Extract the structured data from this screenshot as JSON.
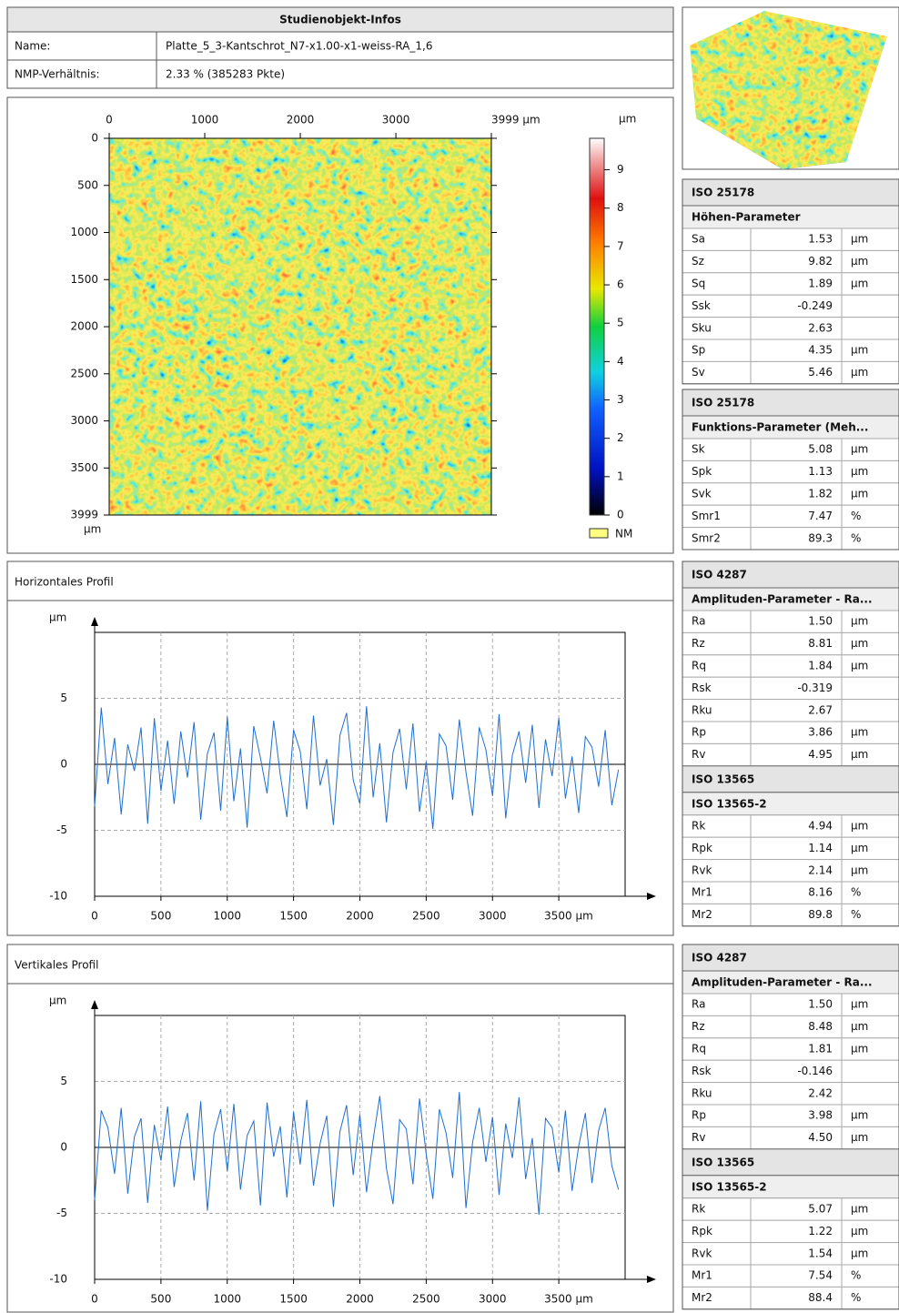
{
  "info": {
    "title": "Studienobjekt-Infos",
    "rows": [
      [
        "Name:",
        "Platte_5_3-Kantschrot_N7-x1.00-x1-weiss-RA_1,6"
      ],
      [
        "NMP-Verhältnis:",
        "2.33 % (385283 Pkte)"
      ]
    ]
  },
  "height_map": {
    "xlim": [
      0,
      3999
    ],
    "ylim": [
      0,
      3999
    ],
    "xticks": [
      0,
      1000,
      2000,
      3000,
      {
        "value": 3999,
        "label": "3999 µm"
      }
    ],
    "yticks": [
      0,
      500,
      1000,
      1500,
      2000,
      2500,
      3000,
      3500,
      3999
    ],
    "y_unit": "µm",
    "colorbar": {
      "unit": "µm",
      "lim": [
        0,
        9.82
      ],
      "ticks": [
        0,
        1,
        2,
        3,
        4,
        5,
        6,
        7,
        8,
        9
      ]
    },
    "nm_label": "NM"
  },
  "tables": [
    {
      "blocks": [
        {
          "title": "ISO 25178",
          "subtitle": "Höhen-Parameter",
          "rows": [
            [
              "Sa",
              "1.53",
              "µm"
            ],
            [
              "Sz",
              "9.82",
              "µm"
            ],
            [
              "Sq",
              "1.89",
              "µm"
            ],
            [
              "Ssk",
              "-0.249"
            ],
            [
              "Sku",
              "2.63"
            ],
            [
              "Sp",
              "4.35",
              "µm"
            ],
            [
              "Sv",
              "5.46",
              "µm"
            ]
          ]
        }
      ]
    },
    {
      "blocks": [
        {
          "title": "ISO 25178",
          "subtitle": "Funktions-Parameter  (Meh...",
          "rows": [
            [
              "Sk",
              "5.08",
              "µm"
            ],
            [
              "Spk",
              "1.13",
              "µm"
            ],
            [
              "Svk",
              "1.82",
              "µm"
            ],
            [
              "Smr1",
              "7.47",
              "%"
            ],
            [
              "Smr2",
              "89.3",
              "%"
            ]
          ]
        }
      ]
    },
    {
      "blocks": [
        {
          "title": "ISO 4287",
          "subtitle": "Amplituden-Parameter  - Ra...",
          "rows": [
            [
              "Ra",
              "1.50",
              "µm"
            ],
            [
              "Rz",
              "8.81",
              "µm"
            ],
            [
              "Rq",
              "1.84",
              "µm"
            ],
            [
              "Rsk",
              "-0.319"
            ],
            [
              "Rku",
              "2.67"
            ],
            [
              "Rp",
              "3.86",
              "µm"
            ],
            [
              "Rv",
              "4.95",
              "µm"
            ]
          ]
        },
        {
          "title": "ISO 13565",
          "subtitle": "ISO 13565-2",
          "rows": [
            [
              "Rk",
              "4.94",
              "µm"
            ],
            [
              "Rpk",
              "1.14",
              "µm"
            ],
            [
              "Rvk",
              "2.14",
              "µm"
            ],
            [
              "Mr1",
              "8.16",
              "%"
            ],
            [
              "Mr2",
              "89.8",
              "%"
            ]
          ]
        }
      ]
    },
    {
      "blocks": [
        {
          "title": "ISO 4287",
          "subtitle": "Amplituden-Parameter  - Ra...",
          "rows": [
            [
              "Ra",
              "1.50",
              "µm"
            ],
            [
              "Rz",
              "8.48",
              "µm"
            ],
            [
              "Rq",
              "1.81",
              "µm"
            ],
            [
              "Rsk",
              "-0.146"
            ],
            [
              "Rku",
              "2.42"
            ],
            [
              "Rp",
              "3.98",
              "µm"
            ],
            [
              "Rv",
              "4.50",
              "µm"
            ]
          ]
        },
        {
          "title": "ISO 13565",
          "subtitle": "ISO 13565-2",
          "rows": [
            [
              "Rk",
              "5.07",
              "µm"
            ],
            [
              "Rpk",
              "1.22",
              "µm"
            ],
            [
              "Rvk",
              "1.54",
              "µm"
            ],
            [
              "Mr1",
              "7.54",
              "%"
            ],
            [
              "Mr2",
              "88.4",
              "%"
            ]
          ]
        }
      ]
    }
  ],
  "horizontal_profile": {
    "title": "Horizontales Profil",
    "y_unit": "µm",
    "color": "#1f6fd0",
    "xlim": [
      0,
      4000
    ],
    "ylim": [
      -10,
      10
    ],
    "xticks": [
      0,
      500,
      1000,
      1500,
      2000,
      2500,
      3000,
      {
        "value": 3500,
        "label": "3500 µm"
      }
    ],
    "yticks": [
      -10,
      -5,
      0,
      5
    ],
    "x": [
      0,
      50,
      100,
      150,
      200,
      250,
      300,
      350,
      400,
      450,
      500,
      550,
      600,
      650,
      700,
      750,
      800,
      850,
      900,
      950,
      1000,
      1050,
      1100,
      1150,
      1200,
      1250,
      1300,
      1350,
      1400,
      1450,
      1500,
      1550,
      1600,
      1650,
      1700,
      1750,
      1800,
      1850,
      1900,
      1950,
      2000,
      2050,
      2100,
      2150,
      2200,
      2250,
      2300,
      2350,
      2400,
      2450,
      2500,
      2550,
      2600,
      2650,
      2700,
      2750,
      2800,
      2850,
      2900,
      2950,
      3000,
      3050,
      3100,
      3150,
      3200,
      3250,
      3300,
      3350,
      3400,
      3450,
      3500,
      3550,
      3600,
      3650,
      3700,
      3750,
      3800,
      3850,
      3900,
      3950
    ],
    "values": [
      -3.2,
      4.3,
      -1.5,
      2.0,
      -3.8,
      1.5,
      -0.5,
      2.8,
      -4.5,
      3.5,
      -2.0,
      1.8,
      -3.0,
      2.5,
      -1.0,
      3.2,
      -4.2,
      0.8,
      2.4,
      -3.5,
      3.6,
      -2.8,
      1.2,
      -4.8,
      2.9,
      0.5,
      -2.2,
      3.3,
      -0.8,
      -4.0,
      2.6,
      1.0,
      -3.4,
      3.7,
      -1.6,
      0.4,
      -4.6,
      2.2,
      3.9,
      -1.2,
      -3.0,
      4.4,
      -2.5,
      1.6,
      -4.4,
      0.9,
      2.7,
      -1.9,
      3.1,
      -3.6,
      0.2,
      -4.9,
      2.3,
      1.4,
      -2.7,
      3.4,
      -0.6,
      -3.9,
      2.8,
      1.1,
      -2.4,
      3.8,
      -4.1,
      0.7,
      2.5,
      -1.4,
      3.0,
      -3.3,
      1.9,
      -0.9,
      3.5,
      -2.6,
      0.6,
      -3.7,
      2.1,
      1.3,
      -1.7,
      2.6,
      -3.1,
      -0.4
    ]
  },
  "vertical_profile": {
    "title": "Vertikales Profil",
    "y_unit": "µm",
    "color": "#1f6fd0",
    "xlim": [
      0,
      4000
    ],
    "ylim": [
      -10,
      10
    ],
    "xticks": [
      0,
      500,
      1000,
      1500,
      2000,
      2500,
      3000,
      {
        "value": 3500,
        "label": "3500 µm"
      }
    ],
    "yticks": [
      -10,
      -5,
      0,
      5
    ],
    "x": [
      0,
      50,
      100,
      150,
      200,
      250,
      300,
      350,
      400,
      450,
      500,
      550,
      600,
      650,
      700,
      750,
      800,
      850,
      900,
      950,
      1000,
      1050,
      1100,
      1150,
      1200,
      1250,
      1300,
      1350,
      1400,
      1450,
      1500,
      1550,
      1600,
      1650,
      1700,
      1750,
      1800,
      1850,
      1900,
      1950,
      2000,
      2050,
      2100,
      2150,
      2200,
      2250,
      2300,
      2350,
      2400,
      2450,
      2500,
      2550,
      2600,
      2650,
      2700,
      2750,
      2800,
      2850,
      2900,
      2950,
      3000,
      3050,
      3100,
      3150,
      3200,
      3250,
      3300,
      3350,
      3400,
      3450,
      3500,
      3550,
      3600,
      3650,
      3700,
      3750,
      3800,
      3850,
      3900,
      3950
    ],
    "values": [
      -4.0,
      2.8,
      1.5,
      -2.0,
      3.0,
      -3.5,
      0.8,
      2.2,
      -4.2,
      1.7,
      -1.0,
      3.1,
      -3.0,
      0.5,
      2.6,
      -2.5,
      3.5,
      -4.8,
      1.0,
      2.9,
      -1.8,
      3.3,
      -3.2,
      0.9,
      2.0,
      -4.4,
      3.4,
      -0.7,
      1.6,
      -3.8,
      2.7,
      -1.3,
      3.6,
      -2.9,
      0.3,
      2.4,
      -4.5,
      1.2,
      3.2,
      -2.1,
      2.5,
      -3.4,
      0.6,
      3.9,
      -1.6,
      -4.3,
      2.1,
      1.4,
      -2.8,
      3.7,
      -0.5,
      -3.9,
      2.9,
      1.1,
      -2.3,
      4.2,
      -4.6,
      0.4,
      3.0,
      -1.1,
      2.3,
      -3.6,
      1.8,
      -0.8,
      3.8,
      -2.4,
      0.7,
      -5.1,
      2.2,
      1.5,
      -1.9,
      2.8,
      -3.3,
      0.1,
      2.6,
      -2.7,
      1.3,
      3.0,
      -1.4,
      -3.2
    ]
  }
}
